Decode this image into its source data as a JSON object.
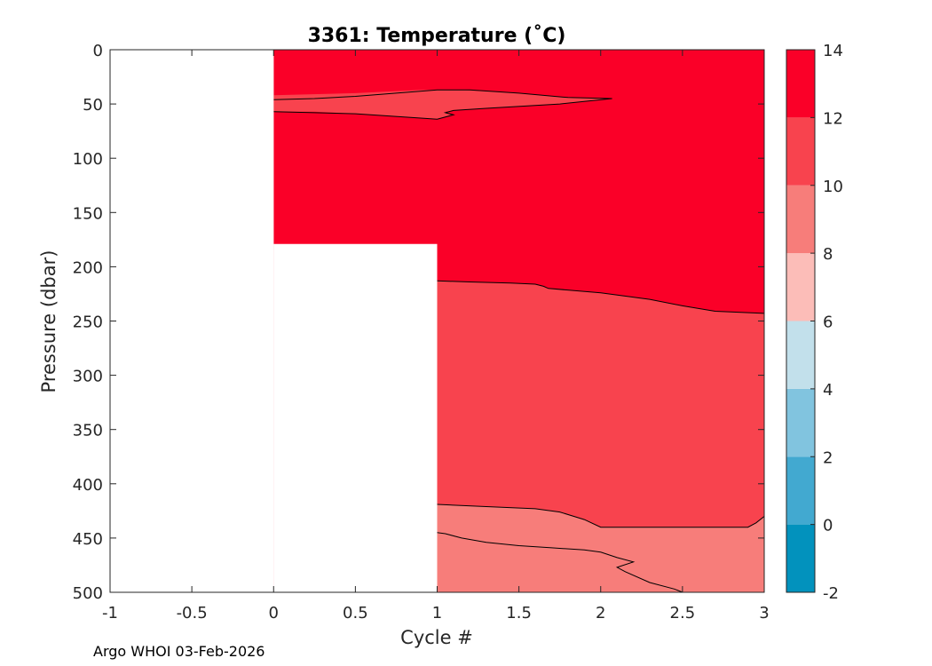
{
  "chart_data": {
    "type": "contour",
    "title": "3361:  Temperature (˚C)",
    "xlabel": "Cycle #",
    "ylabel": "Pressure (dbar)",
    "xlim": [
      -1,
      3
    ],
    "ylim": [
      0,
      500
    ],
    "y_reversed": true,
    "x_ticks": [
      -1,
      -0.5,
      0,
      0.5,
      1,
      1.5,
      2,
      2.5,
      3
    ],
    "x_tick_labels": [
      "-1",
      "-0.5",
      "0",
      "0.5",
      "1",
      "1.5",
      "2",
      "2.5",
      "3"
    ],
    "y_ticks": [
      0,
      50,
      100,
      150,
      200,
      250,
      300,
      350,
      400,
      450,
      500
    ],
    "y_tick_labels": [
      "0",
      "50",
      "100",
      "150",
      "200",
      "250",
      "300",
      "350",
      "400",
      "450",
      "500"
    ],
    "colorbar": {
      "min": -2,
      "max": 14,
      "tick_values": [
        -2,
        0,
        2,
        4,
        6,
        8,
        10,
        12,
        14
      ],
      "tick_labels": [
        "-2",
        "0",
        "2",
        "4",
        "6",
        "8",
        "10",
        "12",
        "14"
      ],
      "bands": [
        {
          "from": -2,
          "to": 0,
          "color": "#0292bd"
        },
        {
          "from": 0,
          "to": 2,
          "color": "#42a9d0"
        },
        {
          "from": 2,
          "to": 4,
          "color": "#81c4df"
        },
        {
          "from": 4,
          "to": 6,
          "color": "#c2e0eb"
        },
        {
          "from": 6,
          "to": 8,
          "color": "#fcbdb8"
        },
        {
          "from": 8,
          "to": 10,
          "color": "#f77d7a"
        },
        {
          "from": 10,
          "to": 12,
          "color": "#f8434e"
        },
        {
          "from": 12,
          "to": 14,
          "color": "#fa0028"
        }
      ]
    },
    "profiles": [
      {
        "cycle": 0,
        "max_pressure": 179
      },
      {
        "cycle": 1,
        "max_pressure": 500
      },
      {
        "cycle": 2,
        "max_pressure": 500
      },
      {
        "cycle": 3,
        "max_pressure": 500
      }
    ],
    "contour_regions": [
      {
        "name": "12C-upper-layer",
        "color": "#fa0028",
        "points": [
          [
            0,
            0
          ],
          [
            3,
            0
          ],
          [
            3,
            500
          ],
          [
            0,
            500
          ]
        ]
      },
      {
        "name": "10-12C-tongue",
        "color": "#f8434e",
        "points": [
          [
            0,
            42
          ],
          [
            0.5,
            40
          ],
          [
            0.9,
            37
          ],
          [
            1.15,
            37
          ],
          [
            1.5,
            40
          ],
          [
            1.8,
            44
          ],
          [
            2.07,
            45
          ],
          [
            1.75,
            50
          ],
          [
            1.3,
            54
          ],
          [
            1.11,
            56
          ],
          [
            1.05,
            57
          ],
          [
            1.1,
            60
          ],
          [
            1.0,
            64
          ],
          [
            0.9,
            63
          ],
          [
            0.5,
            59
          ],
          [
            0.25,
            57
          ],
          [
            0,
            57
          ]
        ]
      },
      {
        "name": "10-12C-layer",
        "color": "#f8434e",
        "points": [
          [
            1,
            213
          ],
          [
            1.2,
            214
          ],
          [
            1.45,
            215
          ],
          [
            1.6,
            216
          ],
          [
            1.65,
            218
          ],
          [
            1.68,
            220
          ],
          [
            2.0,
            224
          ],
          [
            2.3,
            230
          ],
          [
            2.5,
            236
          ],
          [
            2.7,
            241
          ],
          [
            3,
            243
          ],
          [
            3,
            500
          ],
          [
            1,
            500
          ]
        ]
      },
      {
        "name": "8-10C-layer",
        "color": "#f77d7a",
        "points": [
          [
            1,
            419
          ],
          [
            1.3,
            421
          ],
          [
            1.6,
            423
          ],
          [
            1.75,
            426
          ],
          [
            1.9,
            433
          ],
          [
            2.0,
            440
          ],
          [
            2.5,
            440
          ],
          [
            2.7,
            440
          ],
          [
            2.9,
            440
          ],
          [
            2.95,
            436
          ],
          [
            3,
            430
          ],
          [
            3,
            500
          ],
          [
            1,
            500
          ]
        ]
      }
    ],
    "isolines": [
      {
        "level": 12,
        "points": [
          [
            0,
            46
          ],
          [
            0.25,
            45
          ],
          [
            0.5,
            43
          ],
          [
            0.75,
            40
          ],
          [
            1,
            37
          ],
          [
            1.2,
            37
          ],
          [
            1.5,
            40
          ],
          [
            1.8,
            44
          ],
          [
            2.07,
            45
          ],
          [
            1.75,
            50
          ],
          [
            1.3,
            54
          ],
          [
            1.1,
            56
          ],
          [
            1.05,
            58
          ],
          [
            1.1,
            60
          ],
          [
            1.0,
            64
          ],
          [
            0.9,
            63
          ],
          [
            0.5,
            59
          ],
          [
            0.25,
            58
          ],
          [
            0,
            57
          ]
        ]
      },
      {
        "level": 12,
        "points": [
          [
            1,
            213
          ],
          [
            1.2,
            214
          ],
          [
            1.45,
            215
          ],
          [
            1.6,
            216
          ],
          [
            1.65,
            218
          ],
          [
            1.68,
            220
          ],
          [
            2.0,
            224
          ],
          [
            2.3,
            230
          ],
          [
            2.5,
            236
          ],
          [
            2.7,
            241
          ],
          [
            3,
            243
          ]
        ]
      },
      {
        "level": 10,
        "points": [
          [
            1,
            419
          ],
          [
            1.3,
            421
          ],
          [
            1.6,
            423
          ],
          [
            1.75,
            426
          ],
          [
            1.9,
            433
          ],
          [
            2.0,
            440
          ],
          [
            2.5,
            440
          ],
          [
            2.7,
            440
          ],
          [
            2.9,
            440
          ],
          [
            2.95,
            436
          ],
          [
            3,
            430
          ]
        ]
      },
      {
        "level": 8,
        "points": [
          [
            1,
            445
          ],
          [
            1.05,
            446
          ],
          [
            1.15,
            450
          ],
          [
            1.3,
            454
          ],
          [
            1.5,
            457
          ],
          [
            1.7,
            459
          ],
          [
            1.9,
            461
          ],
          [
            2.0,
            463
          ],
          [
            2.1,
            468
          ],
          [
            2.2,
            472
          ],
          [
            2.1,
            477
          ],
          [
            2.15,
            481
          ],
          [
            2.3,
            491
          ],
          [
            2.45,
            497
          ],
          [
            2.5,
            500
          ]
        ]
      }
    ]
  },
  "footer": {
    "credit": "Argo WHOI 03-Feb-2026"
  }
}
